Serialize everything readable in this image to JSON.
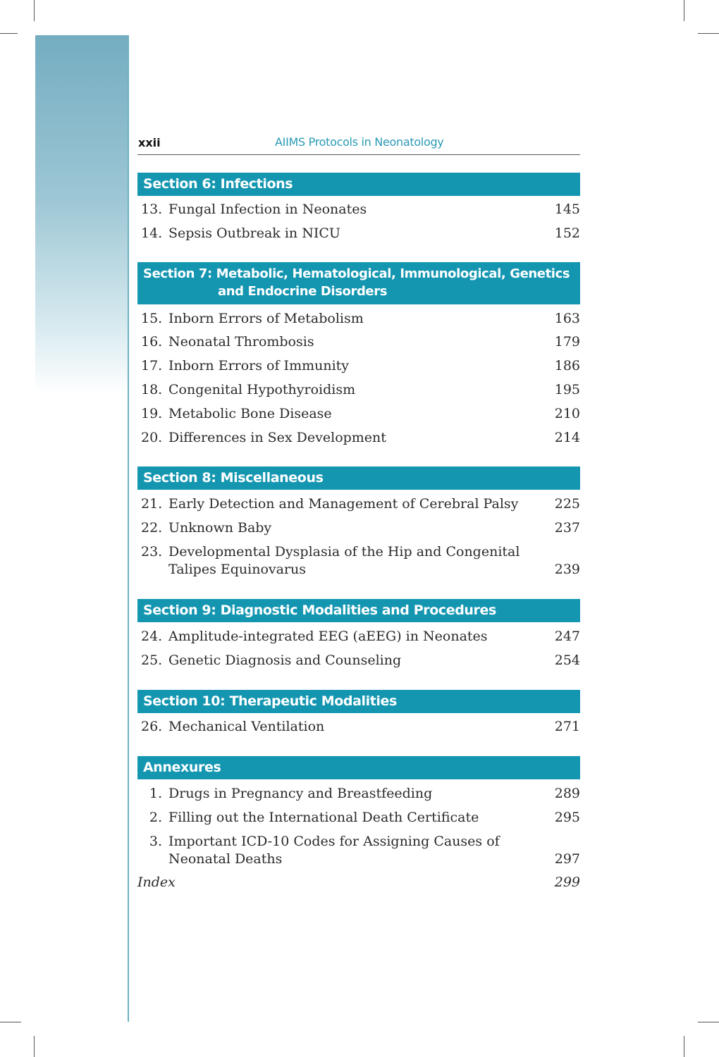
{
  "header": {
    "page_number": "xxii",
    "book_title": "AIIMS Protocols in Neonatology"
  },
  "sections": [
    {
      "title": "Section 6: Infections",
      "entries": [
        {
          "num": "13.",
          "title": "Fungal Infection in Neonates",
          "page": "145"
        },
        {
          "num": "14.",
          "title": "Sepsis Outbreak in NICU",
          "page": "152"
        }
      ]
    },
    {
      "title": "Section 7: Metabolic, Hematological, Immunological, Genetics",
      "title_line2": "and Endocrine Disorders",
      "entries": [
        {
          "num": "15.",
          "title": "Inborn Errors of Metabolism",
          "page": "163"
        },
        {
          "num": "16.",
          "title": "Neonatal Thrombosis",
          "page": "179"
        },
        {
          "num": "17.",
          "title": "Inborn Errors of Immunity",
          "page": "186"
        },
        {
          "num": "18.",
          "title": "Congenital Hypothyroidism",
          "page": "195"
        },
        {
          "num": "19.",
          "title": "Metabolic Bone Disease",
          "page": "210"
        },
        {
          "num": "20.",
          "title": "Differences in Sex Development",
          "page": "214"
        }
      ]
    },
    {
      "title": "Section 8: Miscellaneous",
      "entries": [
        {
          "num": "21.",
          "title": "Early Detection and Management of Cerebral Palsy",
          "page": "225"
        },
        {
          "num": "22.",
          "title": "Unknown Baby",
          "page": "237"
        },
        {
          "num": "23.",
          "title": "Developmental Dysplasia of the Hip and Congenital Talipes Equinovarus",
          "page": "239"
        }
      ]
    },
    {
      "title": "Section 9: Diagnostic Modalities and Procedures",
      "entries": [
        {
          "num": "24.",
          "title": "Amplitude-integrated EEG (aEEG) in Neonates",
          "page": "247"
        },
        {
          "num": "25.",
          "title": "Genetic Diagnosis and Counseling",
          "page": "254"
        }
      ]
    },
    {
      "title": "Section 10: Therapeutic Modalities",
      "entries": [
        {
          "num": "26.",
          "title": "Mechanical Ventilation",
          "page": "271"
        }
      ]
    },
    {
      "title": "Annexures",
      "entries": [
        {
          "num": "1.",
          "title": "Drugs in Pregnancy and Breastfeeding",
          "page": "289"
        },
        {
          "num": "2.",
          "title": "Filling out the International Death Certificate",
          "page": "295"
        },
        {
          "num": "3.",
          "title": "Important ICD-10 Codes for Assigning Causes of Neonatal Deaths",
          "page": "297"
        }
      ]
    }
  ],
  "index": {
    "label": "Index",
    "page": "299"
  },
  "colors": {
    "section_bar": "#1496b1",
    "header_title": "#2a9ab5",
    "sidebar": "#74adc1"
  }
}
